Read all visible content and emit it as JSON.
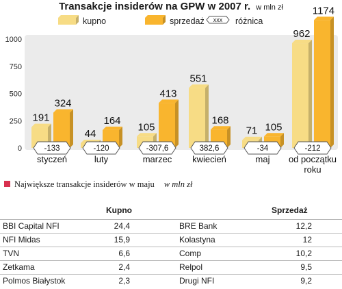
{
  "chart_data": {
    "type": "bar",
    "title": "Transakcje insiderów na GPW w 2007 r.",
    "unit": "w mln zł",
    "categories": [
      "styczeń",
      "luty",
      "marzec",
      "kwiecień",
      "maj",
      "od początku roku"
    ],
    "category_lines": [
      [
        "styczeń"
      ],
      [
        "luty"
      ],
      [
        "marzec"
      ],
      [
        "kwiecień"
      ],
      [
        "maj"
      ],
      [
        "od początku",
        "roku"
      ]
    ],
    "series": [
      {
        "name": "kupno",
        "values": [
          191,
          44,
          105,
          551,
          71,
          962
        ],
        "labels": [
          "191",
          "44",
          "105",
          "551",
          "71",
          "962"
        ]
      },
      {
        "name": "sprzedaż",
        "values": [
          324,
          164,
          413,
          168,
          105,
          1174
        ],
        "labels": [
          "324",
          "164",
          "413",
          "168",
          "105",
          "1174"
        ]
      }
    ],
    "difference": {
      "name": "różnica",
      "values": [
        -133,
        -120,
        -307.6,
        382.6,
        -34,
        -212
      ],
      "labels": [
        "-133",
        "-120",
        "-307,6",
        "382,6",
        "-34",
        "-212"
      ]
    },
    "legend_symbol_label": "xxx",
    "ylim": [
      0,
      1100
    ],
    "yticks": [
      0,
      250,
      500,
      750,
      1000
    ],
    "ytick_labels": [
      "0",
      "250",
      "500",
      "750",
      "1000"
    ],
    "grid": false,
    "legend_position": "top",
    "colors": {
      "kupno": "#f7dc85",
      "sprzedaz": "#f9b52e",
      "panel": "#ebebeb",
      "badge": "#ffffff"
    }
  },
  "table": {
    "title": "Największe transakcje insiderów w maju",
    "unit": "w mln zł",
    "accent": "#d8304f",
    "col_kupno": "Kupno",
    "col_sprzedaz": "Sprzedaż",
    "rows": [
      {
        "buy_name": "BBI Capital NFI",
        "buy_value": "24,4",
        "sell_name": "BRE Bank",
        "sell_value": "12,2"
      },
      {
        "buy_name": "NFI Midas",
        "buy_value": "15,9",
        "sell_name": "Kolastyna",
        "sell_value": "12"
      },
      {
        "buy_name": "TVN",
        "buy_value": "6,6",
        "sell_name": "Comp",
        "sell_value": "10,2"
      },
      {
        "buy_name": "Zetkama",
        "buy_value": "2,4",
        "sell_name": "Relpol",
        "sell_value": "9,5"
      },
      {
        "buy_name": "Polmos Białystok",
        "buy_value": "2,3",
        "sell_name": "Drugi NFI",
        "sell_value": "9,2"
      }
    ]
  }
}
